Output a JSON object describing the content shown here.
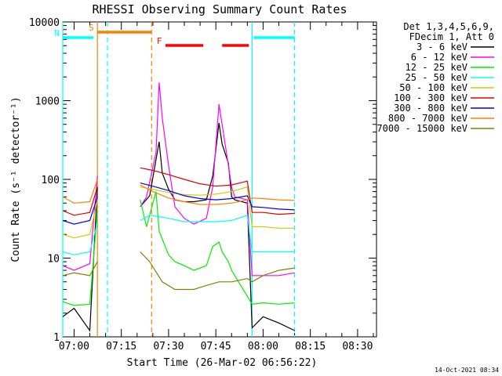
{
  "chart_data": {
    "type": "line",
    "title": "RHESSI Observing Summary Count Rates",
    "xlabel": "Start Time (26-Mar-02 06:56:22)",
    "ylabel": "Count Rate (s⁻¹ detector⁻¹)",
    "y_scale": "log",
    "ylim": [
      1,
      10000
    ],
    "xlim_minutes": [
      "06:56:22",
      "08:36:00"
    ],
    "x_ticks": [
      {
        "label": "07:00",
        "minute": 420
      },
      {
        "label": "07:15",
        "minute": 435
      },
      {
        "label": "07:30",
        "minute": 450
      },
      {
        "label": "07:45",
        "minute": 465
      },
      {
        "label": "08:00",
        "minute": 480
      },
      {
        "label": "08:15",
        "minute": 495
      },
      {
        "label": "08:30",
        "minute": 510
      }
    ],
    "y_ticks": [
      {
        "label": "1",
        "value": 1
      },
      {
        "label": "10",
        "value": 10
      },
      {
        "label": "100",
        "value": 100
      },
      {
        "label": "1000",
        "value": 1000
      },
      {
        "label": "10000",
        "value": 10000
      }
    ],
    "legend_header": [
      "Det 1,3,4,5,6,9,",
      "FDecim 1, Att 0"
    ],
    "legend_position": "right",
    "series": [
      {
        "name": "3 - 6 keV",
        "color": "#000000",
        "points": [
          [
            416.4,
            1.8
          ],
          [
            420,
            2.3
          ],
          [
            425,
            1.2
          ],
          [
            427.4,
            80
          ],
          [
            441,
            45
          ],
          [
            444,
            62
          ],
          [
            447,
            300
          ],
          [
            448,
            120
          ],
          [
            450,
            75
          ],
          [
            452,
            55
          ],
          [
            455,
            52
          ],
          [
            458,
            52
          ],
          [
            462,
            55
          ],
          [
            464,
            110
          ],
          [
            466,
            520
          ],
          [
            467,
            280
          ],
          [
            469,
            160
          ],
          [
            470,
            60
          ],
          [
            471,
            55
          ],
          [
            475,
            50
          ],
          [
            476.5,
            1.3
          ],
          [
            480,
            1.8
          ],
          [
            485,
            1.5
          ],
          [
            490,
            1.2
          ]
        ]
      },
      {
        "name": "6 - 12 keV",
        "color": "#ff00ff",
        "points": [
          [
            416.4,
            8
          ],
          [
            420,
            7
          ],
          [
            425,
            8.5
          ],
          [
            427.4,
            110
          ],
          [
            441,
            45
          ],
          [
            443,
            60
          ],
          [
            446,
            220
          ],
          [
            447,
            1700
          ],
          [
            448,
            600
          ],
          [
            450,
            150
          ],
          [
            452,
            45
          ],
          [
            455,
            32
          ],
          [
            458,
            27
          ],
          [
            462,
            32
          ],
          [
            464,
            80
          ],
          [
            466,
            900
          ],
          [
            467,
            500
          ],
          [
            469,
            150
          ],
          [
            470,
            80
          ],
          [
            471,
            60
          ],
          [
            475,
            55
          ],
          [
            476.5,
            6
          ],
          [
            480,
            6
          ],
          [
            485,
            6
          ],
          [
            490,
            6.5
          ]
        ]
      },
      {
        "name": "12 - 25 keV",
        "color": "#00ee00",
        "points": [
          [
            416.4,
            2.8
          ],
          [
            420,
            2.5
          ],
          [
            425,
            2.6
          ],
          [
            427.4,
            40
          ],
          [
            441,
            55
          ],
          [
            443,
            25
          ],
          [
            446,
            70
          ],
          [
            447,
            22
          ],
          [
            450,
            11
          ],
          [
            452,
            9
          ],
          [
            455,
            8
          ],
          [
            458,
            7
          ],
          [
            462,
            8
          ],
          [
            464,
            14
          ],
          [
            466,
            16
          ],
          [
            467,
            12
          ],
          [
            469,
            9
          ],
          [
            470,
            7
          ],
          [
            471,
            6
          ],
          [
            476.5,
            2.6
          ],
          [
            480,
            2.7
          ],
          [
            485,
            2.6
          ],
          [
            490,
            2.7
          ]
        ]
      },
      {
        "name": "25 - 50 keV",
        "color": "#00ffff",
        "points": [
          [
            416.4,
            12
          ],
          [
            420,
            11
          ],
          [
            425,
            12
          ],
          [
            427.4,
            28
          ],
          [
            441,
            30
          ],
          [
            444,
            35
          ],
          [
            450,
            32
          ],
          [
            455,
            29
          ],
          [
            460,
            29
          ],
          [
            465,
            29
          ],
          [
            470,
            30
          ],
          [
            475,
            35
          ],
          [
            476.5,
            12
          ],
          [
            480,
            12
          ],
          [
            485,
            12
          ],
          [
            490,
            12
          ]
        ]
      },
      {
        "name": "50 - 100 keV",
        "color": "#cccc00",
        "points": [
          [
            416.4,
            20
          ],
          [
            420,
            18
          ],
          [
            425,
            20
          ],
          [
            427.4,
            55
          ],
          [
            441,
            80
          ],
          [
            445,
            75
          ],
          [
            450,
            68
          ],
          [
            455,
            64
          ],
          [
            460,
            63
          ],
          [
            465,
            65
          ],
          [
            470,
            70
          ],
          [
            475,
            80
          ],
          [
            476.5,
            25
          ],
          [
            480,
            25
          ],
          [
            485,
            24
          ],
          [
            490,
            24
          ]
        ]
      },
      {
        "name": "100 - 300 keV",
        "color": "#dd0000",
        "points": [
          [
            416.4,
            40
          ],
          [
            420,
            35
          ],
          [
            425,
            38
          ],
          [
            427.4,
            80
          ],
          [
            441,
            140
          ],
          [
            445,
            130
          ],
          [
            450,
            115
          ],
          [
            455,
            100
          ],
          [
            460,
            88
          ],
          [
            465,
            82
          ],
          [
            470,
            85
          ],
          [
            475,
            95
          ],
          [
            476.5,
            38
          ],
          [
            480,
            38
          ],
          [
            485,
            36
          ],
          [
            490,
            37
          ]
        ]
      },
      {
        "name": "300 - 800 keV",
        "color": "#0000ee",
        "points": [
          [
            416.4,
            30
          ],
          [
            420,
            27
          ],
          [
            425,
            30
          ],
          [
            427.4,
            60
          ],
          [
            441,
            90
          ],
          [
            445,
            82
          ],
          [
            450,
            72
          ],
          [
            455,
            62
          ],
          [
            460,
            57
          ],
          [
            465,
            55
          ],
          [
            470,
            57
          ],
          [
            475,
            62
          ],
          [
            476.5,
            45
          ],
          [
            480,
            44
          ],
          [
            485,
            42
          ],
          [
            490,
            41
          ]
        ]
      },
      {
        "name": "800 - 7000 keV",
        "color": "#ff8000",
        "points": [
          [
            416.4,
            60
          ],
          [
            420,
            50
          ],
          [
            425,
            52
          ],
          [
            427.4,
            100
          ],
          [
            441,
            85
          ],
          [
            445,
            70
          ],
          [
            450,
            58
          ],
          [
            455,
            52
          ],
          [
            460,
            48
          ],
          [
            465,
            48
          ],
          [
            470,
            50
          ],
          [
            475,
            55
          ],
          [
            476.5,
            58
          ],
          [
            480,
            57
          ],
          [
            485,
            55
          ],
          [
            490,
            54
          ]
        ]
      },
      {
        "name": "7000 - 15000 keV",
        "color": "#808000",
        "points": [
          [
            416.4,
            6
          ],
          [
            420,
            6.5
          ],
          [
            425,
            6
          ],
          [
            427.4,
            9
          ],
          [
            441,
            12
          ],
          [
            444,
            9
          ],
          [
            448,
            5
          ],
          [
            452,
            4
          ],
          [
            458,
            4
          ],
          [
            462,
            4.5
          ],
          [
            466,
            5
          ],
          [
            470,
            5
          ],
          [
            475,
            5.5
          ],
          [
            476.5,
            5
          ],
          [
            480,
            6
          ],
          [
            485,
            7
          ],
          [
            490,
            7.5
          ]
        ]
      }
    ],
    "flags": [
      {
        "label": "S",
        "color": "#ff8000",
        "start": 427.4,
        "end": 444.6
      },
      {
        "label": "N",
        "color": "#00ffff",
        "start": 416.4,
        "end": 426.1
      },
      {
        "label": "N",
        "color": "#00ffff",
        "start": 477.0,
        "end": 490.0,
        "no_label": true
      },
      {
        "label": "F",
        "color": "#ff0000",
        "start": 449.0,
        "end": 461.0
      },
      {
        "label": "F",
        "color": "#ff0000",
        "start": 467.0,
        "end": 475.5,
        "no_label": true
      }
    ],
    "vertical_markers": [
      {
        "minute": 416.4,
        "color": "#00ffff",
        "style": "solid"
      },
      {
        "minute": 427.4,
        "color": "#ff8000",
        "style": "solid"
      },
      {
        "minute": 430.6,
        "color": "#00ffff",
        "style": "dashed"
      },
      {
        "minute": 444.6,
        "color": "#ff8000",
        "style": "dashed"
      },
      {
        "minute": 476.5,
        "color": "#00ffff",
        "style": "solid"
      },
      {
        "minute": 490.0,
        "color": "#00ffff",
        "style": "dashed"
      }
    ],
    "grid": false
  },
  "footer": {
    "date_stamp": "14-Oct-2021 08:34"
  }
}
